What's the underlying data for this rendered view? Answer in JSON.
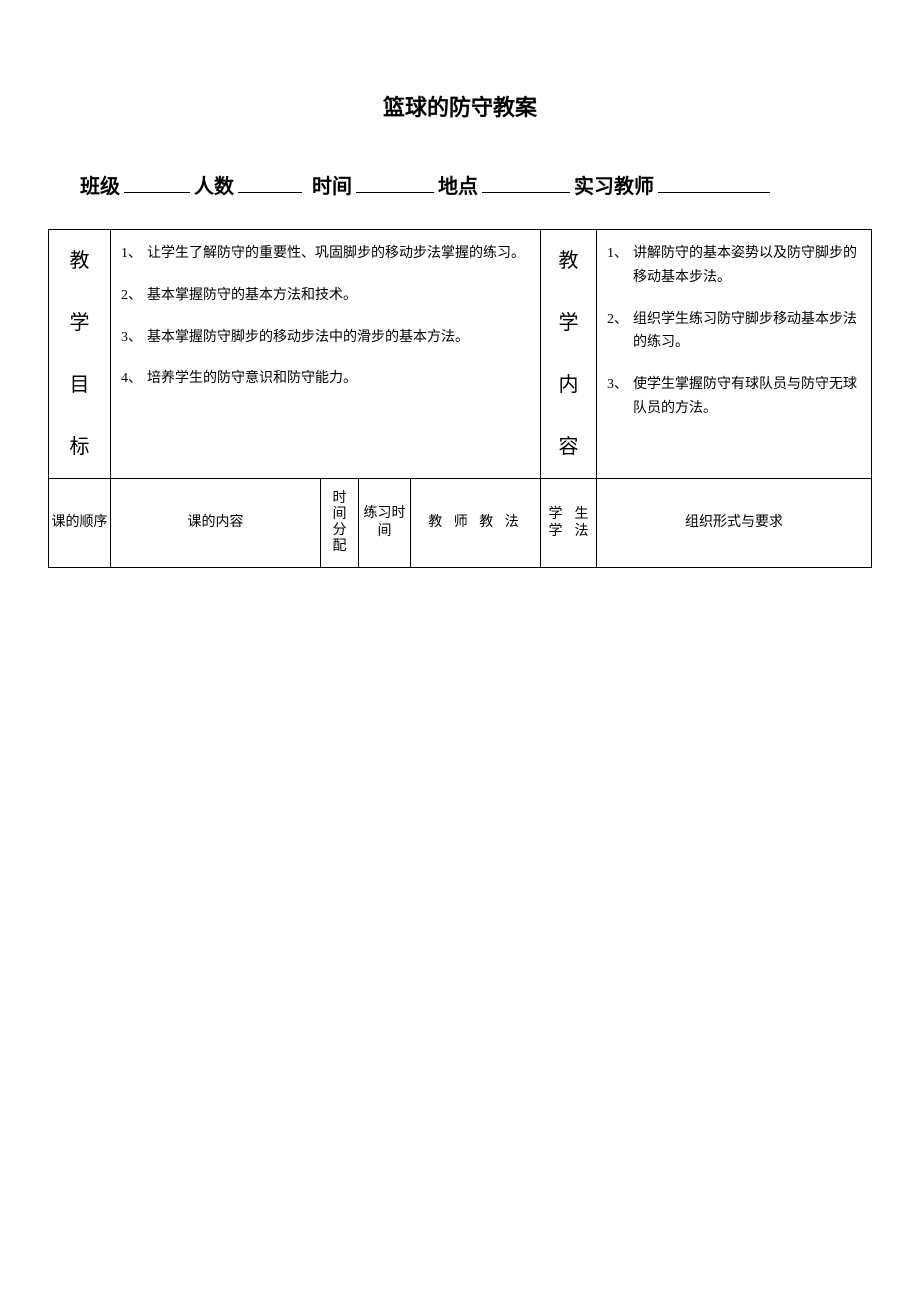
{
  "title": "篮球的防守教案",
  "form": {
    "class_label": "班级",
    "count_label": "人数",
    "time_label": "时间",
    "place_label": "地点",
    "teacher_label": "实习教师"
  },
  "row1": {
    "goals_header_chars": [
      "教",
      "学",
      "目",
      "标"
    ],
    "content_header_chars": [
      "教",
      "学",
      "内",
      "容"
    ],
    "goals": [
      {
        "n": "1、",
        "t": "让学生了解防守的重要性、巩固脚步的移动步法掌握的练习。"
      },
      {
        "n": "2、",
        "t": "基本掌握防守的基本方法和技术。"
      },
      {
        "n": "3、",
        "t": "基本掌握防守脚步的移动步法中的滑步的基本方法。"
      },
      {
        "n": "4、",
        "t": "培养学生的防守意识和防守能力。"
      }
    ],
    "contents": [
      {
        "n": "1、",
        "t": "讲解防守的基本姿势以及防守脚步的移动基本步法。"
      },
      {
        "n": "2、",
        "t": "组织学生练习防守脚步移动基本步法的练习。"
      },
      {
        "n": "3、",
        "t": "使学生掌握防守有球队员与防守无球队员的方法。"
      }
    ]
  },
  "row2": {
    "seq": "课的顺序",
    "content": "课的内容",
    "time_alloc_chars": [
      "时",
      "间",
      "分",
      "配"
    ],
    "practice_time": "练习时间",
    "teacher_method": "教 师 教 法",
    "student_learn_col1": [
      "学",
      "学"
    ],
    "student_learn_col2": [
      "生",
      "法"
    ],
    "org": "组织形式与要求"
  }
}
